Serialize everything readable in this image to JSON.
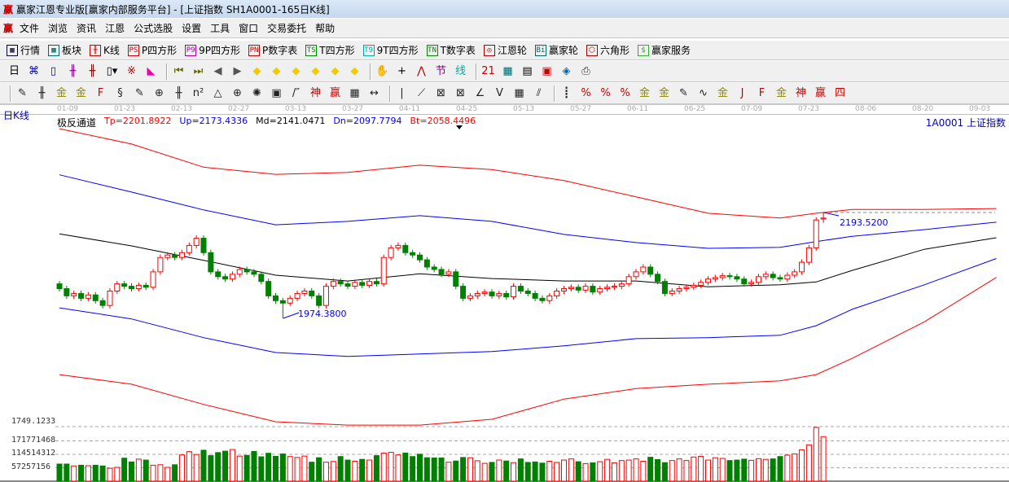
{
  "window": {
    "title": "赢家江恩专业版[赢家内部服务平台] - [上证指数  SH1A0001-165日K线]",
    "logo": "赢"
  },
  "menu": [
    "文件",
    "浏览",
    "资讯",
    "江恩",
    "公式选股",
    "设置",
    "工具",
    "窗口",
    "交易委托",
    "帮助"
  ],
  "toolbar1": [
    {
      "icon": "quote-table-icon",
      "glyph": "▦",
      "label": "行情",
      "color": "#003"
    },
    {
      "icon": "sector-icon",
      "glyph": "▩",
      "label": "板块",
      "color": "#066"
    },
    {
      "icon": "kline-icon",
      "glyph": "╫",
      "label": "K线",
      "color": "#c00"
    },
    {
      "icon": "ps-icon",
      "glyph": "PS",
      "label": "P四方形",
      "color": "#c00"
    },
    {
      "icon": "p9-icon",
      "glyph": "P9",
      "label": "9P四方形",
      "color": "#a0a"
    },
    {
      "icon": "pn-icon",
      "glyph": "PN",
      "label": "P数字表",
      "color": "#c00"
    },
    {
      "icon": "ts-icon",
      "glyph": "TS",
      "label": "T四方形",
      "color": "#080"
    },
    {
      "icon": "t9-icon",
      "glyph": "T9",
      "label": "9T四方形",
      "color": "#0aa"
    },
    {
      "icon": "tn-icon",
      "glyph": "TN",
      "label": "T数字表",
      "color": "#080"
    },
    {
      "icon": "gann-wheel-icon",
      "glyph": "◎",
      "label": "江恩轮",
      "color": "#a00"
    },
    {
      "icon": "winner-wheel-icon",
      "glyph": "Bi",
      "label": "赢家轮",
      "color": "#066"
    },
    {
      "icon": "hexagon-icon",
      "glyph": "⬡",
      "label": "六角形",
      "color": "#a00"
    },
    {
      "icon": "dollar-icon",
      "glyph": "$",
      "label": "赢家服务",
      "color": "#3a3"
    }
  ],
  "toolbar2": [
    {
      "icon": "period-select-icon",
      "glyph": "日▾",
      "color": "#000"
    },
    {
      "icon": "chart-style-icon",
      "glyph": "⌘",
      "color": "#00c"
    },
    {
      "icon": "notes-icon",
      "glyph": "▯",
      "color": "#00c"
    },
    {
      "icon": "kline3-icon",
      "glyph": "╫",
      "color": "#808"
    },
    {
      "icon": "kline9-icon",
      "glyph": "╫",
      "color": "#800"
    },
    {
      "icon": "candle-type-icon",
      "glyph": "▯▾",
      "color": "#000"
    },
    {
      "icon": "overlay-icon",
      "glyph": "※",
      "color": "#a00"
    },
    {
      "icon": "flag-icon",
      "glyph": "◣",
      "color": "#e0a"
    },
    {
      "sep": true
    },
    {
      "icon": "first-icon",
      "glyph": "⏮",
      "color": "#660"
    },
    {
      "icon": "last-icon",
      "glyph": "⏭",
      "color": "#660"
    },
    {
      "icon": "prev-icon",
      "glyph": "◀",
      "color": "#555"
    },
    {
      "icon": "next-icon",
      "glyph": "▶",
      "color": "#555"
    },
    {
      "icon": "move-left-icon",
      "glyph": "◆",
      "color": "#ec0"
    },
    {
      "icon": "move-up-icon",
      "glyph": "◆",
      "color": "#ec0"
    },
    {
      "icon": "zoom-h-icon",
      "glyph": "◆",
      "color": "#ec0"
    },
    {
      "icon": "zoom-in-icon",
      "glyph": "◆",
      "color": "#ec0"
    },
    {
      "icon": "zoom-out-icon",
      "glyph": "◆",
      "color": "#ec0"
    },
    {
      "icon": "zoom-v-icon",
      "glyph": "◆",
      "color": "#ec0"
    },
    {
      "sep": true
    },
    {
      "icon": "hand-icon",
      "glyph": "✋",
      "color": "#000"
    },
    {
      "icon": "crosshair-icon",
      "glyph": "+",
      "color": "#000"
    },
    {
      "icon": "pivot-icon",
      "glyph": "⋀",
      "color": "#a00"
    },
    {
      "icon": "jie-icon",
      "glyph": "节",
      "color": "#808"
    },
    {
      "icon": "line-icon",
      "glyph": "线",
      "color": "#0aa"
    },
    {
      "sep": true
    },
    {
      "icon": "calendar-icon",
      "glyph": "21",
      "color": "#c00"
    },
    {
      "icon": "calculator-icon",
      "glyph": "▦",
      "color": "#066"
    },
    {
      "icon": "report-icon",
      "glyph": "▤",
      "color": "#000"
    },
    {
      "icon": "save-icon",
      "glyph": "▣",
      "color": "#c00"
    },
    {
      "icon": "network-icon",
      "glyph": "◈",
      "color": "#06a"
    },
    {
      "icon": "print-icon",
      "glyph": "⎙",
      "color": "#333"
    }
  ],
  "toolbar3": [
    "pen-icon",
    "parallel-lines-icon",
    "gold-ratio-icon",
    "gold-ratio2-icon",
    "fibonacci-icon",
    "spiral-icon",
    "pen2-icon",
    "circle-grid-icon",
    "lines-icon",
    "n2-icon",
    "triangle-icon",
    "target-icon",
    "radar-icon",
    "square-target-icon",
    "angle-lines-icon",
    "shen-icon",
    "ying-icon",
    "grid-icon",
    "measure-icon",
    "box-icon",
    "fan-icon",
    "fan-box-icon",
    "fan-box2-icon",
    "angle-icon",
    "v-icon",
    "square-grid-icon",
    "parallel-icon",
    "cycle-icon",
    "percent-line-icon",
    "percent-icon",
    "percent2-icon",
    "gold-circle-icon",
    "gold-lines-icon",
    "pen3-icon",
    "wave-icon",
    "gold-band-icon",
    "j-angle-icon",
    "f-angle-icon",
    "gold-angle-icon",
    "shen-angle-icon",
    "ying-angle-icon",
    "si-angle-icon"
  ],
  "date_axis": [
    "01-09",
    "01-23",
    "02-13",
    "02-27",
    "03-13",
    "03-27",
    "04-11",
    "04-25",
    "05-13",
    "05-27",
    "06-11",
    "06-25",
    "07-09",
    "07-23",
    "08-06",
    "08-20",
    "09-03"
  ],
  "chart_header": {
    "period": "日K线",
    "indicator": "极反通道",
    "tp": "Tp=2201.8922",
    "up": "Up=2173.4336",
    "md": "Md=2141.0471",
    "dn": "Dn=2097.7794",
    "bt": "Bt=2058.4496",
    "code": "1A0001  上证指数"
  },
  "colors": {
    "up": "#ff0000",
    "down": "#008000",
    "tp": "#ff0000",
    "up_band": "#0000ff",
    "md": "#000000",
    "dn": "#0000ff",
    "bt": "#ff0000"
  },
  "chart_data": {
    "type": "candlestick",
    "price_axis": {
      "label": "1749.1233"
    },
    "volume_axis": [
      "171771468",
      "114514312",
      "57257156"
    ],
    "annotations": {
      "high": "2193.5200",
      "low": "1974.3800"
    },
    "open": [
      2045,
      2035,
      2020,
      2025,
      2015,
      2022,
      2010,
      2000,
      2030,
      2045,
      2040,
      2035,
      2042,
      2038,
      2070,
      2100,
      2105,
      2100,
      2110,
      2125,
      2140,
      2110,
      2070,
      2060,
      2055,
      2065,
      2075,
      2070,
      2065,
      2050,
      2020,
      2010,
      2005,
      2015,
      2025,
      2030,
      2020,
      2000,
      2040,
      2050,
      2045,
      2040,
      2048,
      2042,
      2050,
      2045,
      2100,
      2120,
      2125,
      2110,
      2105,
      2095,
      2080,
      2075,
      2065,
      2070,
      2040,
      2015,
      2020,
      2025,
      2028,
      2020,
      2025,
      2018,
      2040,
      2030,
      2025,
      2015,
      2010,
      2020,
      2030,
      2035,
      2038,
      2032,
      2040,
      2028,
      2035,
      2038,
      2040,
      2045,
      2060,
      2070,
      2080,
      2065,
      2050,
      2025,
      2030,
      2035,
      2038,
      2042,
      2048,
      2055,
      2058,
      2062,
      2060,
      2055,
      2045,
      2048,
      2060,
      2065,
      2058,
      2055,
      2063,
      2070,
      2090,
      2120,
      2180
    ],
    "high": [
      2051,
      2041,
      2031,
      2031,
      2028,
      2028,
      2016,
      2036,
      2051,
      2051,
      2046,
      2048,
      2048,
      2076,
      2106,
      2111,
      2111,
      2116,
      2131,
      2146,
      2146,
      2116,
      2076,
      2066,
      2071,
      2081,
      2081,
      2076,
      2071,
      2056,
      2026,
      2016,
      2021,
      2031,
      2036,
      2036,
      2026,
      2046,
      2056,
      2056,
      2051,
      2054,
      2054,
      2056,
      2056,
      2106,
      2126,
      2131,
      2131,
      2116,
      2111,
      2101,
      2086,
      2081,
      2076,
      2076,
      2046,
      2026,
      2031,
      2034,
      2034,
      2031,
      2031,
      2046,
      2046,
      2036,
      2031,
      2021,
      2026,
      2036,
      2041,
      2044,
      2044,
      2046,
      2046,
      2041,
      2044,
      2046,
      2051,
      2066,
      2076,
      2086,
      2086,
      2071,
      2056,
      2036,
      2041,
      2044,
      2048,
      2054,
      2061,
      2064,
      2068,
      2068,
      2066,
      2061,
      2054,
      2066,
      2071,
      2071,
      2064,
      2069,
      2076,
      2096,
      2126,
      2184,
      2193.52
    ],
    "low": [
      2029,
      2014,
      2014,
      2009,
      2009,
      2004,
      1994,
      1994,
      2024,
      2034,
      2029,
      2029,
      2032,
      2032,
      2064,
      2094,
      2094,
      2094,
      2104,
      2119,
      2104,
      2064,
      2054,
      2049,
      2049,
      2059,
      2064,
      2059,
      2044,
      2014,
      2004,
      1974.38,
      1999,
      2009,
      2019,
      2014,
      1994,
      1994,
      2034,
      2039,
      2034,
      2034,
      2036,
      2036,
      2039,
      2039,
      2094,
      2114,
      2104,
      2099,
      2089,
      2074,
      2069,
      2059,
      2059,
      2034,
      2009,
      2009,
      2014,
      2019,
      2014,
      2014,
      2012,
      2012,
      2024,
      2019,
      2009,
      2004,
      2004,
      2014,
      2024,
      2029,
      2026,
      2026,
      2022,
      2022,
      2029,
      2032,
      2034,
      2039,
      2054,
      2064,
      2059,
      2044,
      2019,
      2019,
      2024,
      2029,
      2032,
      2036,
      2042,
      2049,
      2052,
      2054,
      2049,
      2039,
      2039,
      2042,
      2054,
      2052,
      2049,
      2049,
      2057,
      2064,
      2084,
      2114,
      2172
    ],
    "close": [
      2035,
      2020,
      2025,
      2015,
      2022,
      2010,
      2000,
      2030,
      2045,
      2040,
      2035,
      2042,
      2038,
      2070,
      2100,
      2105,
      2100,
      2110,
      2125,
      2140,
      2110,
      2070,
      2060,
      2055,
      2065,
      2075,
      2070,
      2065,
      2050,
      2020,
      2010,
      2005,
      2015,
      2025,
      2030,
      2020,
      2000,
      2040,
      2050,
      2045,
      2040,
      2048,
      2042,
      2050,
      2045,
      2100,
      2120,
      2125,
      2110,
      2105,
      2095,
      2080,
      2075,
      2065,
      2070,
      2040,
      2015,
      2020,
      2025,
      2028,
      2020,
      2025,
      2018,
      2040,
      2030,
      2025,
      2015,
      2010,
      2020,
      2030,
      2035,
      2038,
      2032,
      2040,
      2028,
      2035,
      2038,
      2040,
      2045,
      2060,
      2070,
      2080,
      2065,
      2050,
      2025,
      2030,
      2035,
      2038,
      2042,
      2048,
      2055,
      2058,
      2062,
      2060,
      2055,
      2045,
      2048,
      2060,
      2065,
      2058,
      2055,
      2063,
      2070,
      2090,
      2120,
      2178,
      2182
    ],
    "volume": [
      73000000.0,
      73000000.0,
      65000000.0,
      68000000.0,
      66000000.0,
      68000000.0,
      65000000.0,
      55000000.0,
      59000000.0,
      98000000.0,
      82000000.0,
      94000000.0,
      90000000.0,
      68000000.0,
      70000000.0,
      59000000.0,
      70000000.0,
      112000000.0,
      126000000.0,
      114000000.0,
      132000000.0,
      109000000.0,
      122000000.0,
      128000000.0,
      135000000.0,
      107000000.0,
      110000000.0,
      127000000.0,
      104000000.0,
      119000000.0,
      106000000.0,
      116000000.0,
      105000000.0,
      101000000.0,
      107000000.0,
      81000000.0,
      100000000.0,
      81000000.0,
      84000000.0,
      105000000.0,
      90000000.0,
      85000000.0,
      93000000.0,
      90000000.0,
      109000000.0,
      120000000.0,
      123000000.0,
      112000000.0,
      120000000.0,
      105000000.0,
      115000000.0,
      100000000.0,
      99000000.0,
      99000000.0,
      81000000.0,
      86000000.0,
      101000000.0,
      100000000.0,
      87000000.0,
      76000000.0,
      80000000.0,
      90000000.0,
      86000000.0,
      79000000.0,
      95000000.0,
      80000000.0,
      82000000.0,
      77000000.0,
      85000000.0,
      80000000.0,
      90000000.0,
      95000000.0,
      83000000.0,
      75000000.0,
      78000000.0,
      83000000.0,
      93000000.0,
      78000000.0,
      88000000.0,
      90000000.0,
      95000000.0,
      85000000.0,
      102000000.0,
      92000000.0,
      79000000.0,
      88000000.0,
      95000000.0,
      88000000.0,
      103000000.0,
      106000000.0,
      90000000.0,
      100000000.0,
      97000000.0,
      88000000.0,
      90000000.0,
      94000000.0,
      89000000.0,
      96000000.0,
      93000000.0,
      95000000.0,
      105000000.0,
      111000000.0,
      116000000.0,
      134000000.0,
      155000000.0,
      229000000.0,
      190000000.0
    ],
    "bands": {
      "index": [
        0,
        10,
        20,
        30,
        40,
        50,
        60,
        70,
        80,
        90,
        100,
        105,
        110,
        120,
        130
      ],
      "Tp": [
        2368,
        2336,
        2288,
        2273,
        2277,
        2292,
        2283,
        2260,
        2226,
        2192,
        2182,
        2192,
        2200,
        2200,
        2201.89
      ],
      "Up": [
        2272,
        2236,
        2199,
        2168,
        2175,
        2187,
        2175,
        2148,
        2131,
        2119,
        2121,
        2133,
        2144,
        2158,
        2173.43
      ],
      "Md": [
        2149,
        2124,
        2094,
        2063,
        2051,
        2066,
        2056,
        2051,
        2051,
        2039,
        2043,
        2049,
        2073,
        2117,
        2141.05
      ],
      "Dn": [
        1995,
        1972,
        1933,
        1902,
        1894,
        1899,
        1904,
        1916,
        1931,
        1933,
        1938,
        1958,
        1992,
        2043,
        2097.78
      ],
      "Bt": [
        1856,
        1836,
        1794,
        1758,
        1751,
        1751,
        1763,
        1805,
        1827,
        1836,
        1843,
        1856,
        1890,
        1966,
        2058.45
      ]
    }
  }
}
